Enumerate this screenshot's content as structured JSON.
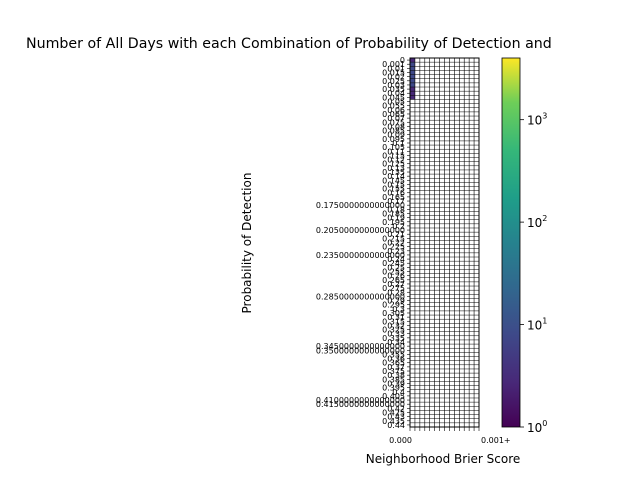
{
  "chart_data": {
    "type": "heatmap",
    "title": "Number of All Days with each Combination of Probability of Detection and",
    "xlabel": "Neighborhood Brier Score",
    "ylabel": "Probability of Detection",
    "colormap": "viridis",
    "color_scale": "log",
    "colorbar": {
      "range": [
        1,
        4000
      ],
      "ticks": [
        {
          "value": 1,
          "label": "10",
          "exp": "0"
        },
        {
          "value": 10,
          "label": "10",
          "exp": "1"
        },
        {
          "value": 100,
          "label": "10",
          "exp": "2"
        },
        {
          "value": 1000,
          "label": "10",
          "exp": "3"
        }
      ]
    },
    "x_tick_labels": [
      "0.000",
      "0.001+"
    ],
    "y_tick_labels": [
      "0",
      "0.001",
      "0.01",
      "0.015",
      "0.02",
      "0.025",
      "0.03",
      "0.035",
      "0.04",
      "0.045",
      "0.05",
      "0.055",
      "0.06",
      "0.065",
      "0.07",
      "0.075",
      "0.08",
      "0.085",
      "0.09",
      "0.095",
      "0.1",
      "0.105",
      "0.11",
      "0.115",
      "0.12",
      "0.125",
      "0.13",
      "0.135",
      "0.14",
      "0.145",
      "0.15",
      "0.155",
      "0.16",
      "0.165",
      "0.17",
      "0.1750000000000000",
      "0.18",
      "0.185",
      "0.19",
      "0.195",
      "0.2",
      "0.2050000000000000",
      "0.21",
      "0.215",
      "0.22",
      "0.225",
      "0.23",
      "0.2350000000000000",
      "0.24",
      "0.245",
      "0.25",
      "0.255",
      "0.26",
      "0.265",
      "0.27",
      "0.275",
      "0.28",
      "0.2850000000000000",
      "0.29",
      "0.295",
      "0.3",
      "0.305",
      "0.31",
      "0.315",
      "0.32",
      "0.325",
      "0.33",
      "0.335",
      "0.34",
      "0.3450000000000000",
      "0.3500000000000000",
      "0.355",
      "0.36",
      "0.365",
      "0.37",
      "0.375",
      "0.38",
      "0.385",
      "0.39",
      "0.395",
      "0.4",
      "0.405",
      "0.4100000000000000",
      "0.4150000000000000",
      "0.42",
      "0.425",
      "0.43",
      "0.435",
      "0.44"
    ],
    "cell_counts_note": "",
    "cells_sample": [
      {
        "row": 0,
        "col": 0,
        "value": 3
      },
      {
        "row": 1,
        "col": 0,
        "value": 8
      },
      {
        "row": 2,
        "col": 0,
        "value": 12
      },
      {
        "row": 3,
        "col": 0,
        "value": 10
      },
      {
        "row": 4,
        "col": 0,
        "value": 7
      },
      {
        "row": 5,
        "col": 0,
        "value": 5
      },
      {
        "row": 6,
        "col": 0,
        "value": 6
      },
      {
        "row": 7,
        "col": 0,
        "value": 4
      },
      {
        "row": 8,
        "col": 0,
        "value": 3
      },
      {
        "row": 9,
        "col": 0,
        "value": 2
      }
    ]
  }
}
